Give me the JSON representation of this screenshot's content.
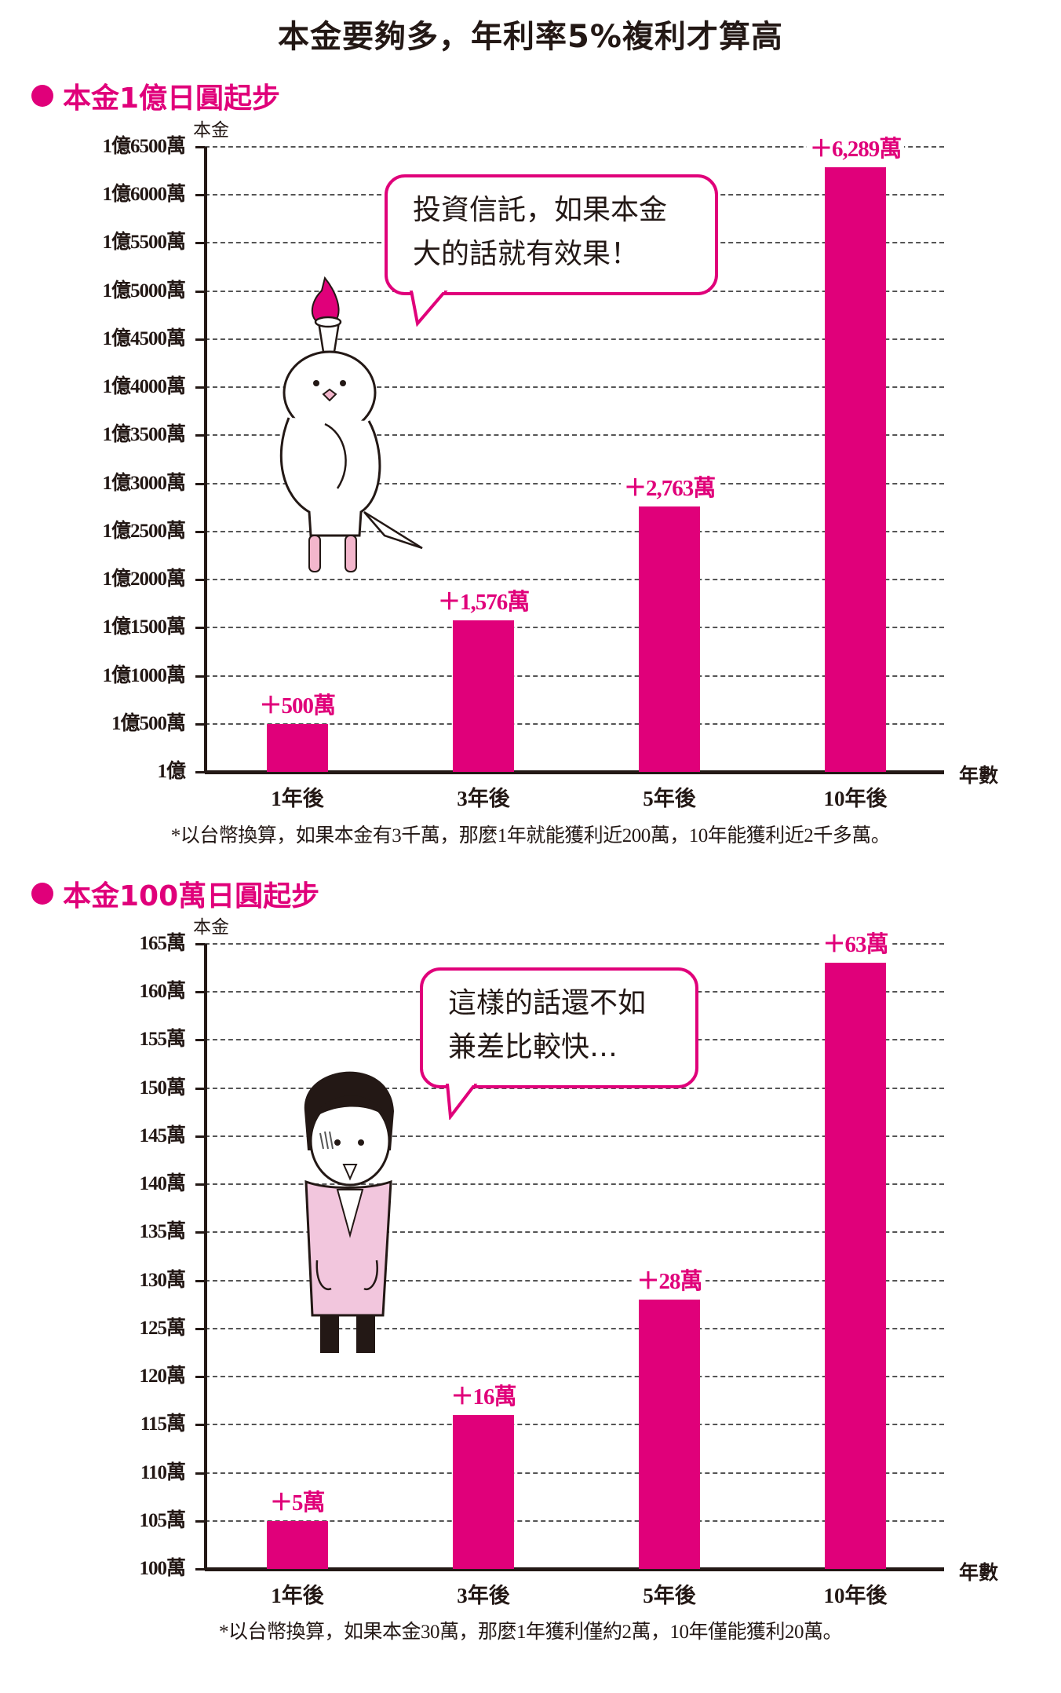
{
  "title": "本金要夠多，年利率5%複利才算高",
  "colors": {
    "accent": "#E0007A",
    "text": "#231815",
    "grid": "#555555"
  },
  "section1": {
    "heading": "本金1億日圓起步",
    "y_unit": "本金",
    "x_unit": "年數",
    "y_ticks": [
      "1億6500萬",
      "1億6000萬",
      "1億5500萬",
      "1億5000萬",
      "1億4500萬",
      "1億4000萬",
      "1億3500萬",
      "1億3000萬",
      "1億2500萬",
      "1億2000萬",
      "1億1500萬",
      "1億1000萬",
      "1億500萬",
      "1億"
    ],
    "x_labels": [
      "1年後",
      "3年後",
      "5年後",
      "10年後"
    ],
    "bar_labels": [
      "＋500萬",
      "＋1,576萬",
      "＋2,763萬",
      "＋6,289萬"
    ],
    "bubble_lines": [
      "投資信託，如果本金",
      "大的話就有效果！"
    ],
    "footnote": "*以台幣換算，如果本金有3千萬，那麼1年就能獲利近200萬，10年能獲利近2千多萬。"
  },
  "section2": {
    "heading": "本金100萬日圓起步",
    "y_unit": "本金",
    "x_unit": "年數",
    "y_ticks": [
      "165萬",
      "160萬",
      "155萬",
      "150萬",
      "145萬",
      "140萬",
      "135萬",
      "130萬",
      "125萬",
      "120萬",
      "115萬",
      "110萬",
      "105萬",
      "100萬"
    ],
    "x_labels": [
      "1年後",
      "3年後",
      "5年後",
      "10年後"
    ],
    "bar_labels": [
      "＋5萬",
      "＋16萬",
      "＋28萬",
      "＋63萬"
    ],
    "bubble_lines": [
      "這樣的話還不如",
      "兼差比較快…"
    ],
    "footnote": "*以台幣換算，如果本金30萬，那麼1年獲利僅約2萬，10年僅能獲利20萬。"
  },
  "chart_data": [
    {
      "type": "bar",
      "title": "本金1億日圓起步",
      "xlabel": "年數",
      "ylabel": "本金",
      "categories": [
        "1年後",
        "3年後",
        "5年後",
        "10年後"
      ],
      "values": [
        10500,
        11576,
        12763,
        16289
      ],
      "gains": [
        500,
        1576,
        2763,
        6289
      ],
      "unit": "萬日圓",
      "ylim": [
        10000,
        16500
      ],
      "ytick_step": 500,
      "grid": true,
      "legend": null
    },
    {
      "type": "bar",
      "title": "本金100萬日圓起步",
      "xlabel": "年數",
      "ylabel": "本金",
      "categories": [
        "1年後",
        "3年後",
        "5年後",
        "10年後"
      ],
      "values": [
        105,
        116,
        128,
        163
      ],
      "gains": [
        5,
        16,
        28,
        63
      ],
      "unit": "萬日圓",
      "ylim": [
        100,
        165
      ],
      "ytick_step": 5,
      "grid": true,
      "legend": null
    }
  ]
}
